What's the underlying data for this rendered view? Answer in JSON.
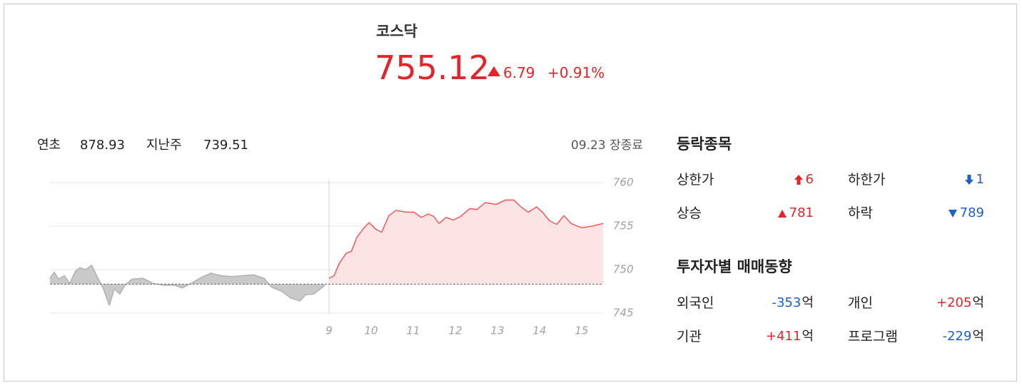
{
  "header": {
    "name": "코스닥",
    "price": "755.12",
    "change": "6.79",
    "change_rate": "+0.91%"
  },
  "summary": {
    "ytd_label": "연초",
    "ytd_value": "878.93",
    "week_label": "지난주",
    "week_value": "739.51",
    "status": "09.23 장종료"
  },
  "chart_data": {
    "type": "line",
    "xlim": [
      2.37,
      15.51
    ],
    "xticks": [
      9,
      10,
      11,
      12,
      13,
      14,
      15
    ],
    "ylim": [
      745,
      760
    ],
    "yticks": [
      760,
      755,
      750,
      745
    ],
    "grid": true,
    "reference_line": 748.33,
    "series": [
      {
        "color": "#b3b3b3",
        "fill": "#c9c9c9",
        "x": [
          2.37,
          2.47,
          2.58,
          2.71,
          2.84,
          2.97,
          3.08,
          3.22,
          3.36,
          3.47,
          3.64,
          3.78,
          3.9,
          4.03,
          4.15,
          4.32,
          4.58,
          4.83,
          5.08,
          5.34,
          5.51,
          5.68,
          5.93,
          6.19,
          6.44,
          6.69,
          6.95,
          7.2,
          7.46,
          7.63,
          7.88,
          8.1,
          8.31,
          8.44,
          8.64,
          8.9
        ],
        "values": [
          749.0,
          749.7,
          748.9,
          749.3,
          748.4,
          749.8,
          750.2,
          750.0,
          750.5,
          749.4,
          747.8,
          745.9,
          747.8,
          747.2,
          748.2,
          748.9,
          749.0,
          748.4,
          748.2,
          748.2,
          747.9,
          748.3,
          749.0,
          749.6,
          749.3,
          749.2,
          749.3,
          749.4,
          749.0,
          748.0,
          747.5,
          746.7,
          746.4,
          747.1,
          747.2,
          748.2
        ]
      },
      {
        "color": "#f06262",
        "fill": "#fde4e4",
        "x": [
          9.0,
          9.12,
          9.24,
          9.41,
          9.53,
          9.66,
          9.83,
          9.95,
          10.12,
          10.25,
          10.42,
          10.59,
          10.85,
          11.02,
          11.19,
          11.36,
          11.49,
          11.61,
          11.78,
          11.95,
          12.12,
          12.34,
          12.51,
          12.71,
          12.97,
          13.19,
          13.39,
          13.56,
          13.73,
          13.93,
          14.07,
          14.24,
          14.41,
          14.58,
          14.75,
          15.0,
          15.25,
          15.51
        ],
        "values": [
          749.0,
          749.3,
          750.7,
          751.9,
          752.1,
          753.7,
          754.8,
          755.4,
          754.6,
          754.3,
          756.2,
          756.8,
          756.6,
          756.6,
          756.0,
          756.4,
          756.1,
          755.3,
          756.0,
          755.7,
          756.1,
          757.0,
          756.9,
          757.7,
          757.5,
          758.0,
          758.0,
          757.2,
          756.6,
          757.2,
          756.6,
          755.6,
          755.2,
          756.2,
          755.3,
          754.8,
          755.0,
          755.3
        ]
      }
    ]
  },
  "breadth": {
    "title": "등락종목",
    "items": [
      {
        "label": "상한가",
        "value": "6"
      },
      {
        "label": "하한가",
        "value": "1"
      },
      {
        "label": "상승",
        "value": "781"
      },
      {
        "label": "하락",
        "value": "789"
      }
    ]
  },
  "investors": {
    "title": "투자자별 매매동향",
    "items": [
      {
        "label": "외국인",
        "value": "-353",
        "unit": "억"
      },
      {
        "label": "개인",
        "value": "+205",
        "unit": "억"
      },
      {
        "label": "기관",
        "value": "+411",
        "unit": "억"
      },
      {
        "label": "프로그램",
        "value": "-229",
        "unit": "억"
      }
    ]
  }
}
